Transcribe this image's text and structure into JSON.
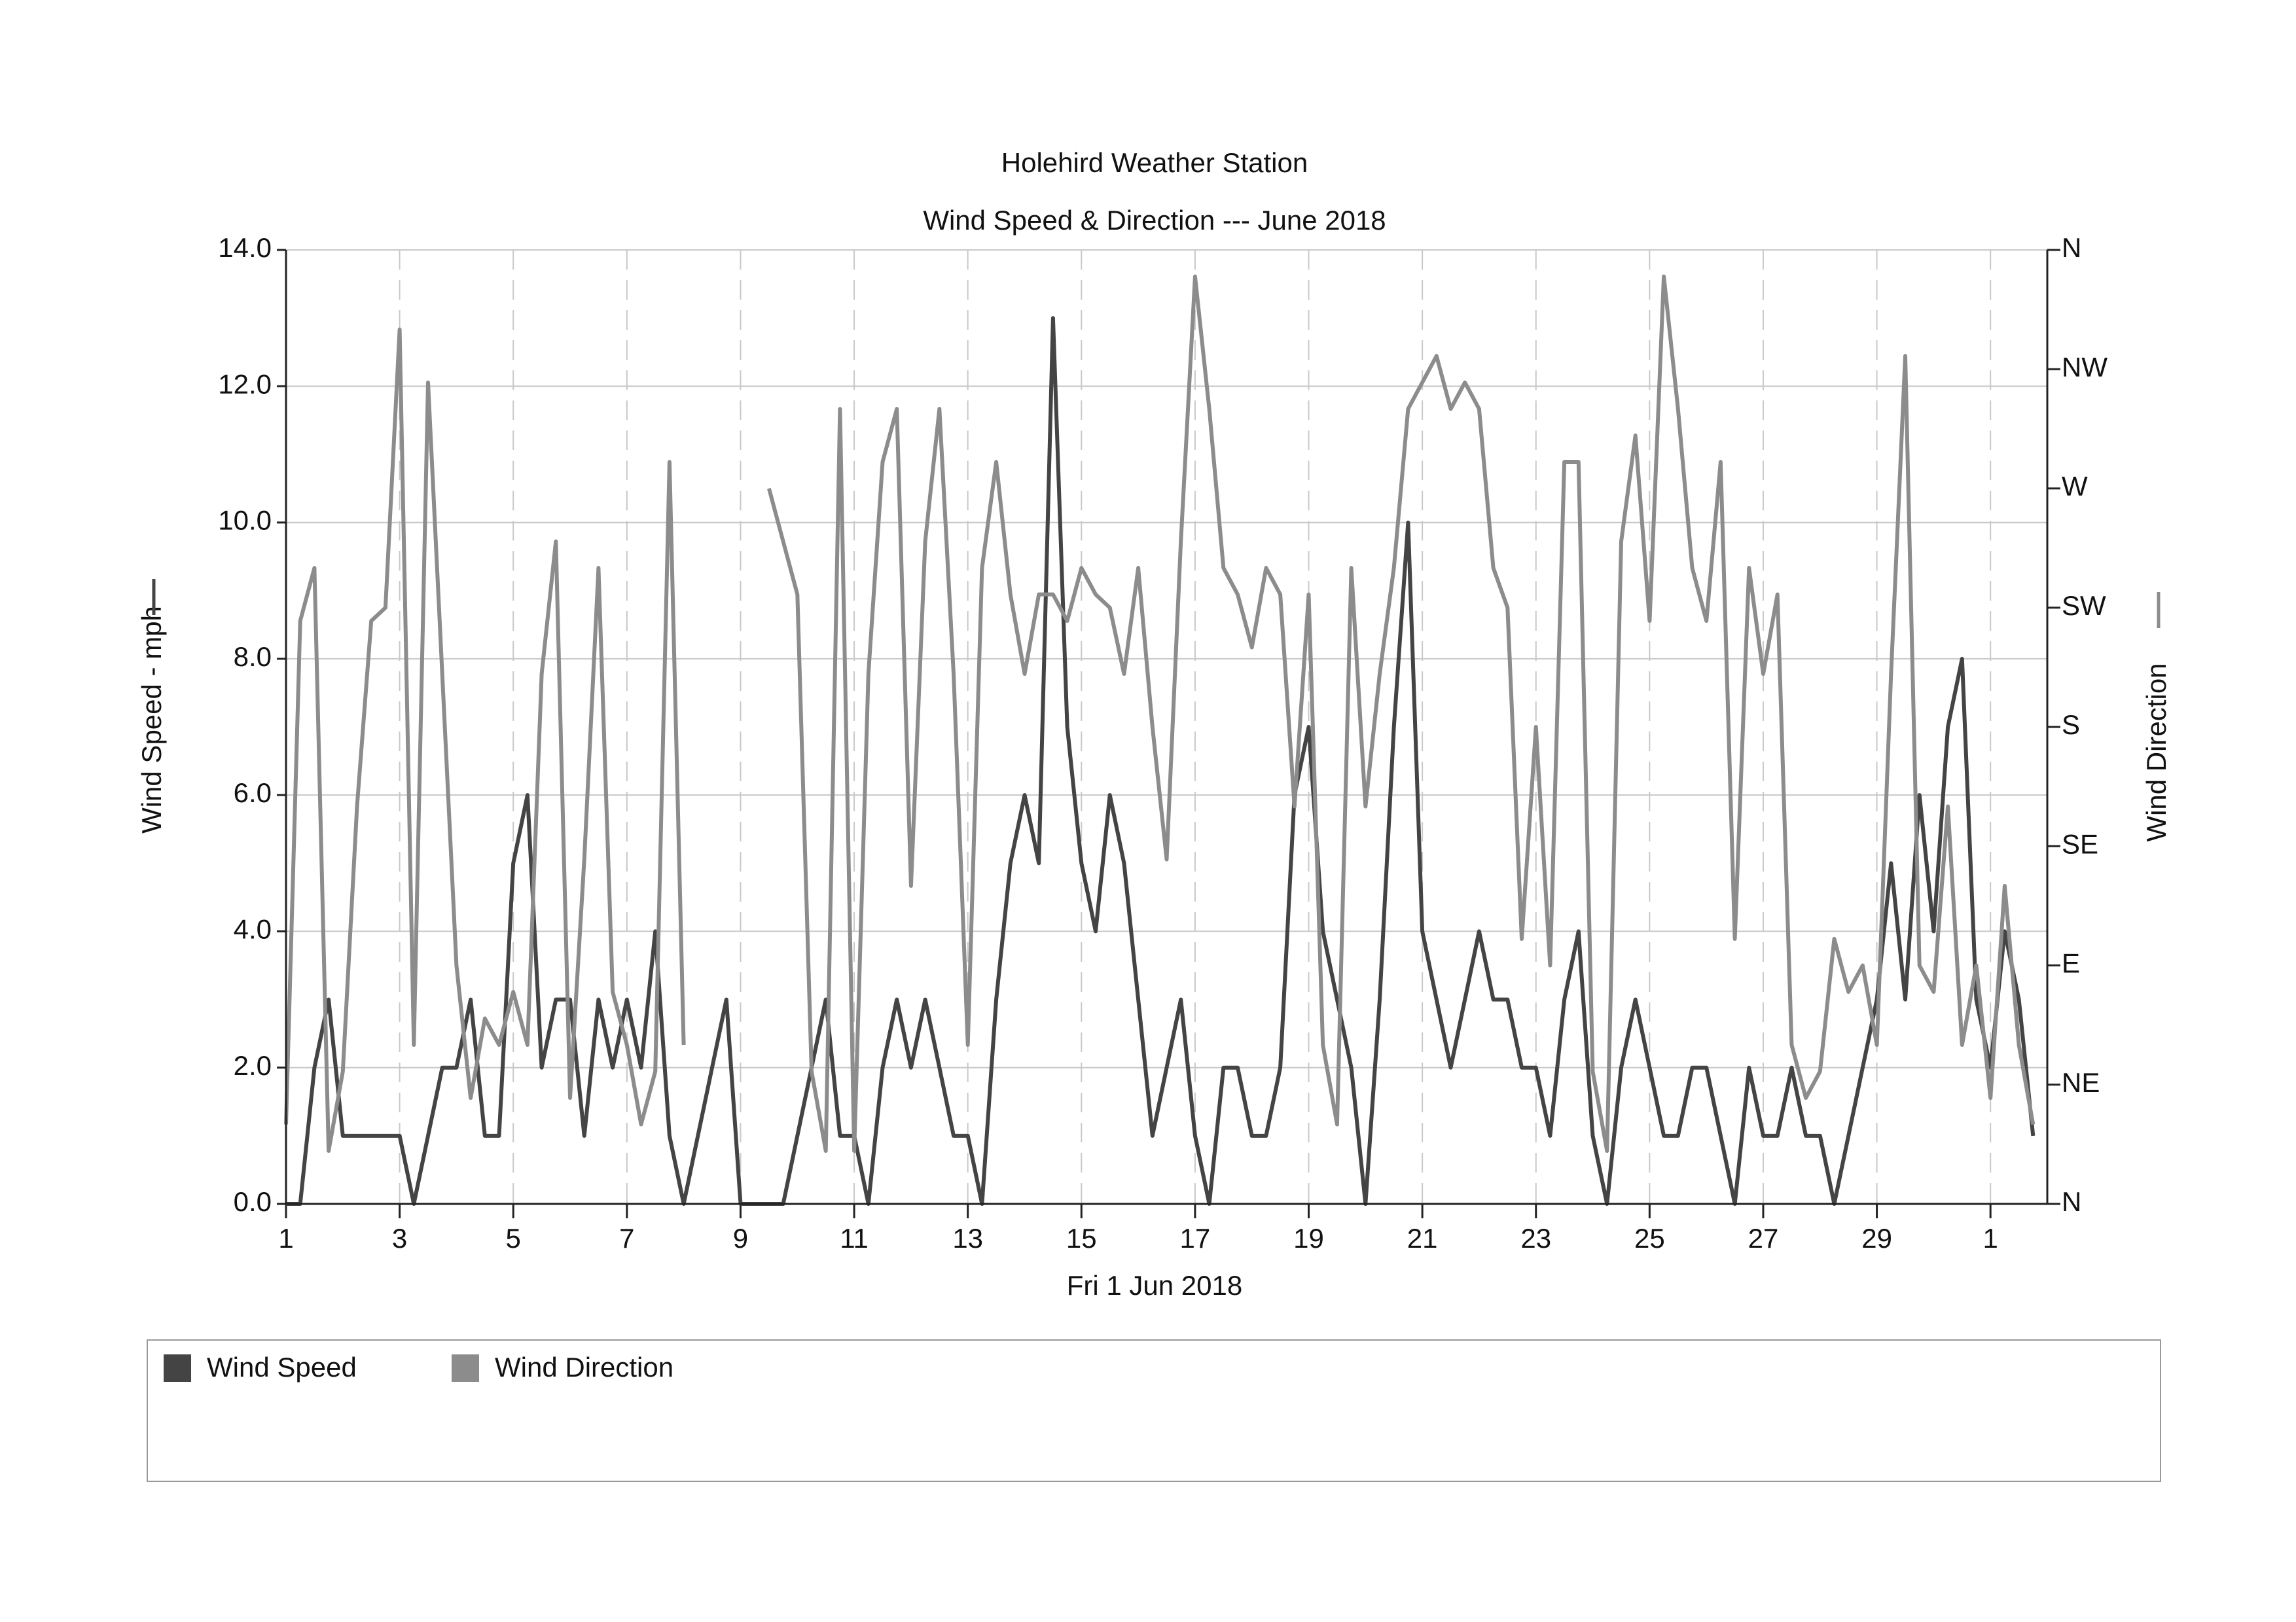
{
  "chart_data": {
    "type": "line",
    "title": "Holehird Weather Station",
    "subtitle": "Wind Speed & Direction --- June 2018",
    "xlabel": "Fri 1 Jun 2018",
    "ylabel": "Wind Speed - mph",
    "y2label": "Wind Direction",
    "grid": true,
    "legend": "bottom",
    "xlim": [
      0,
      31
    ],
    "xticks": [
      {
        "value": 0,
        "label": "1"
      },
      {
        "value": 2,
        "label": "3"
      },
      {
        "value": 4,
        "label": "5"
      },
      {
        "value": 6,
        "label": "7"
      },
      {
        "value": 8,
        "label": "9"
      },
      {
        "value": 10,
        "label": "11"
      },
      {
        "value": 12,
        "label": "13"
      },
      {
        "value": 14,
        "label": "15"
      },
      {
        "value": 16,
        "label": "17"
      },
      {
        "value": 18,
        "label": "19"
      },
      {
        "value": 20,
        "label": "21"
      },
      {
        "value": 22,
        "label": "23"
      },
      {
        "value": 24,
        "label": "25"
      },
      {
        "value": 26,
        "label": "27"
      },
      {
        "value": 28,
        "label": "29"
      },
      {
        "value": 30,
        "label": "1"
      }
    ],
    "ylim": [
      0,
      14
    ],
    "yticks": [
      {
        "value": 0,
        "label": "0.0"
      },
      {
        "value": 2,
        "label": "2.0"
      },
      {
        "value": 4,
        "label": "4.0"
      },
      {
        "value": 6,
        "label": "6.0"
      },
      {
        "value": 8,
        "label": "8.0"
      },
      {
        "value": 10,
        "label": "10.0"
      },
      {
        "value": 12,
        "label": "12.0"
      },
      {
        "value": 14,
        "label": "14.0"
      }
    ],
    "y2lim": [
      0,
      360
    ],
    "y2ticks": [
      {
        "value": 0,
        "label": "N"
      },
      {
        "value": 45,
        "label": "NE"
      },
      {
        "value": 90,
        "label": "E"
      },
      {
        "value": 135,
        "label": "SE"
      },
      {
        "value": 180,
        "label": "S"
      },
      {
        "value": 225,
        "label": "SW"
      },
      {
        "value": 270,
        "label": "W"
      },
      {
        "value": 315,
        "label": "NW"
      },
      {
        "value": 360,
        "label": "N"
      }
    ],
    "x": [
      0,
      0.25,
      0.5,
      0.75,
      1,
      1.25,
      1.5,
      1.75,
      2,
      2.25,
      2.5,
      2.75,
      3,
      3.25,
      3.5,
      3.75,
      4,
      4.25,
      4.5,
      4.75,
      5,
      5.25,
      5.5,
      5.75,
      6,
      6.25,
      6.5,
      6.75,
      7,
      7.25,
      7.5,
      7.75,
      8,
      8.25,
      8.5,
      8.75,
      9,
      9.25,
      9.5,
      9.75,
      10,
      10.25,
      10.5,
      10.75,
      11,
      11.25,
      11.5,
      11.75,
      12,
      12.25,
      12.5,
      12.75,
      13,
      13.25,
      13.5,
      13.75,
      14,
      14.25,
      14.5,
      14.75,
      15,
      15.25,
      15.5,
      15.75,
      16,
      16.25,
      16.5,
      16.75,
      17,
      17.25,
      17.5,
      17.75,
      18,
      18.25,
      18.5,
      18.75,
      19,
      19.25,
      19.5,
      19.75,
      20,
      20.25,
      20.5,
      20.75,
      21,
      21.25,
      21.5,
      21.75,
      22,
      22.25,
      22.5,
      22.75,
      23,
      23.25,
      23.5,
      23.75,
      24,
      24.25,
      24.5,
      24.75,
      25,
      25.25,
      25.5,
      25.75,
      26,
      26.25,
      26.5,
      26.75,
      27,
      27.25,
      27.5,
      27.75,
      28,
      28.25,
      28.5,
      28.75,
      29,
      29.25,
      29.5,
      29.75,
      30,
      30.25,
      30.5,
      30.75
    ],
    "series": [
      {
        "name": "Wind Speed",
        "color": "#444444",
        "values": [
          0,
          0,
          2,
          3,
          1,
          1,
          1,
          1,
          1,
          0,
          1,
          2,
          2,
          3,
          1,
          1,
          5,
          6,
          2,
          3,
          3,
          1,
          3,
          2,
          3,
          2,
          4,
          1,
          0,
          1,
          2,
          3,
          0,
          0,
          0,
          0,
          1,
          2,
          3,
          1,
          1,
          0,
          2,
          3,
          2,
          3,
          2,
          1,
          1,
          0,
          3,
          5,
          6,
          5,
          13,
          7,
          5,
          4,
          6,
          5,
          3,
          1,
          2,
          3,
          1,
          0,
          2,
          2,
          1,
          1,
          2,
          6,
          7,
          4,
          3,
          2,
          0,
          3,
          7,
          10,
          4,
          3,
          2,
          3,
          4,
          3,
          3,
          2,
          2,
          1,
          3,
          4,
          1,
          0,
          2,
          3,
          2,
          1,
          1,
          2,
          2,
          1,
          0,
          2,
          1,
          1,
          2,
          1,
          1,
          0,
          1,
          2,
          3,
          5,
          3,
          6,
          4,
          7,
          8,
          3,
          2,
          4,
          3,
          1
        ]
      },
      {
        "name": "Wind Direction",
        "color": "#8c8c8c",
        "axis": "y2",
        "values": [
          30,
          220,
          240,
          20,
          50,
          150,
          220,
          225,
          330,
          60,
          310,
          200,
          90,
          40,
          70,
          60,
          80,
          60,
          200,
          250,
          40,
          130,
          240,
          80,
          60,
          30,
          50,
          280,
          60,
          null,
          null,
          null,
          null,
          null,
          270,
          250,
          230,
          50,
          20,
          300,
          20,
          200,
          280,
          300,
          120,
          250,
          300,
          200,
          60,
          240,
          280,
          230,
          200,
          230,
          230,
          220,
          240,
          230,
          225,
          200,
          240,
          180,
          130,
          250,
          350,
          300,
          240,
          230,
          210,
          240,
          230,
          150,
          230,
          60,
          30,
          240,
          150,
          200,
          240,
          300,
          310,
          320,
          300,
          310,
          300,
          240,
          225,
          100,
          180,
          90,
          280,
          280,
          50,
          20,
          250,
          290,
          220,
          350,
          300,
          240,
          220,
          280,
          100,
          240,
          200,
          230,
          60,
          40,
          50,
          100,
          80,
          90,
          60,
          200,
          320,
          90,
          80,
          150,
          60,
          90,
          40,
          120,
          60,
          30
        ]
      }
    ]
  }
}
